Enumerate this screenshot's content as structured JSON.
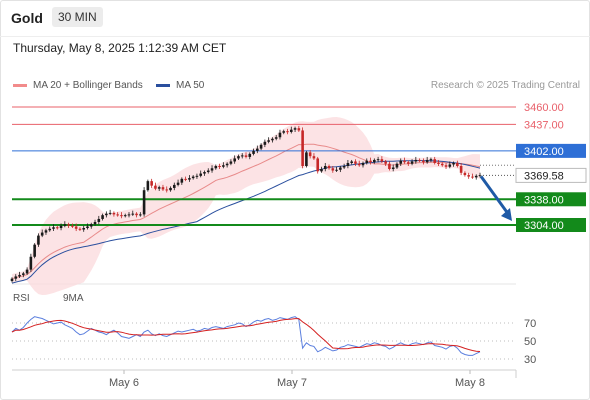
{
  "header": {
    "title": "Gold",
    "timeframe": "30 MIN",
    "datetime": "Thursday, May 8, 2025 1:12:39 AM CET"
  },
  "legend": {
    "ma20_label": "MA 20 + Bollinger Bands",
    "ma50_label": "MA 50",
    "credit": "Research © 2025 Trading Central"
  },
  "rsi_legend": {
    "rsi_label": "RSI",
    "ma_label": "9MA"
  },
  "colors": {
    "resistance": "#e8606a",
    "pivot": "#2e6fd6",
    "support": "#138a1b",
    "ma20": "#e88a8a",
    "ma50": "#2a4f9e",
    "band": "#fbd9dc",
    "candle_up": "#1a1a1a",
    "candle_down": "#c62828",
    "rsi": "#5b7fde",
    "rsi_ma": "#d42020",
    "arrow": "#1f5aa6"
  },
  "chart_data": [
    {
      "type": "candlestick",
      "x_labels": [
        "May 6",
        "May 7",
        "May 8"
      ],
      "levels": [
        {
          "value": 3460.0,
          "label": "3460.00",
          "kind": "resistance"
        },
        {
          "value": 3437.0,
          "label": "3437.00",
          "kind": "resistance"
        },
        {
          "value": 3402.0,
          "label": "3402.00",
          "kind": "pivot"
        },
        {
          "value": 3338.0,
          "label": "3338.00",
          "kind": "support"
        },
        {
          "value": 3304.0,
          "label": "3304.00",
          "kind": "support"
        }
      ],
      "last_price": {
        "value": 3369.58,
        "label": "3369.58"
      },
      "forecast_arrow": {
        "from": 3371,
        "to": 3304
      },
      "close": [
        3233,
        3236,
        3238,
        3240,
        3245,
        3262,
        3278,
        3290,
        3294,
        3297,
        3299,
        3301,
        3300,
        3303,
        3305,
        3303,
        3302,
        3299,
        3298,
        3300,
        3302,
        3305,
        3308,
        3312,
        3317,
        3319,
        3320,
        3318,
        3317,
        3316,
        3317,
        3318,
        3319,
        3317,
        3318,
        3350,
        3362,
        3356,
        3352,
        3354,
        3351,
        3350,
        3353,
        3357,
        3360,
        3365,
        3364,
        3366,
        3368,
        3369,
        3372,
        3374,
        3376,
        3379,
        3382,
        3381,
        3383,
        3385,
        3388,
        3392,
        3395,
        3396,
        3394,
        3398,
        3402,
        3405,
        3410,
        3414,
        3416,
        3418,
        3420,
        3426,
        3428,
        3427,
        3430,
        3432,
        3429,
        3382,
        3400,
        3395,
        3392,
        3375,
        3378,
        3382,
        3379,
        3376,
        3377,
        3380,
        3382,
        3386,
        3388,
        3385,
        3383,
        3386,
        3389,
        3387,
        3390,
        3391,
        3388,
        3385,
        3378,
        3380,
        3385,
        3389,
        3387,
        3385,
        3388,
        3390,
        3389,
        3387,
        3390,
        3391,
        3386,
        3385,
        3383,
        3381,
        3384,
        3386,
        3382,
        3373,
        3370,
        3368,
        3367,
        3369,
        3370
      ],
      "rsi": [
        60,
        64,
        62,
        65,
        70,
        74,
        77,
        76,
        75,
        73,
        71,
        69,
        70,
        71,
        68,
        66,
        64,
        60,
        57,
        58,
        61,
        64,
        62,
        60,
        59,
        57,
        60,
        62,
        59,
        55,
        54,
        53,
        55,
        57,
        55,
        60,
        62,
        58,
        56,
        58,
        56,
        55,
        57,
        59,
        61,
        60,
        61,
        62,
        63,
        61,
        62,
        64,
        63,
        65,
        66,
        65,
        64,
        66,
        67,
        68,
        70,
        69,
        66,
        68,
        71,
        73,
        72,
        74,
        75,
        73,
        74,
        76,
        75,
        74,
        76,
        77,
        74,
        42,
        48,
        45,
        44,
        38,
        40,
        43,
        41,
        39,
        40,
        43,
        44,
        46,
        45,
        44,
        43,
        45,
        47,
        46,
        48,
        47,
        45,
        44,
        41,
        43,
        46,
        48,
        46,
        45,
        47,
        48,
        47,
        46,
        48,
        49,
        45,
        44,
        43,
        41,
        44,
        45,
        42,
        37,
        35,
        34,
        34,
        36,
        38
      ],
      "rsi_ticks": [
        70,
        50,
        30
      ]
    }
  ]
}
